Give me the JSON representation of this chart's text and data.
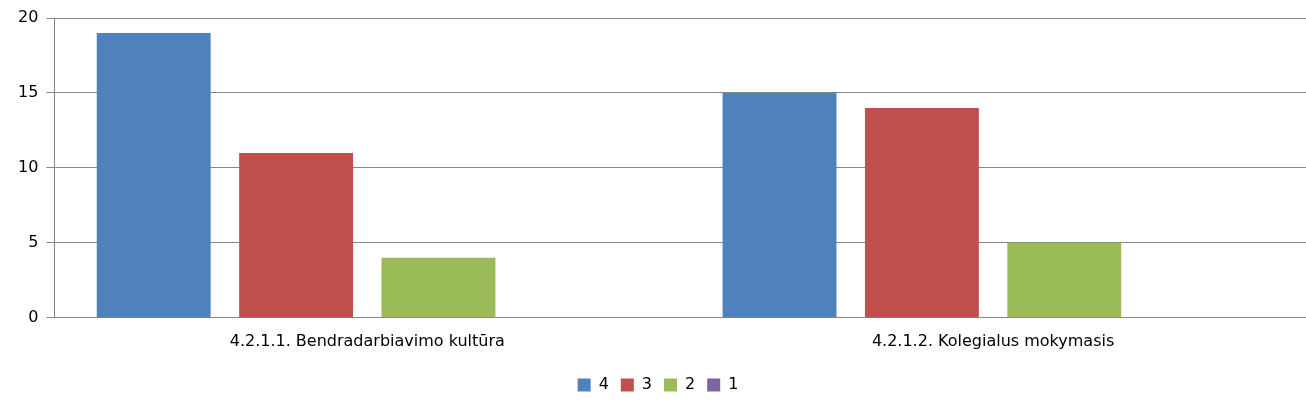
{
  "chart_data": {
    "type": "bar",
    "categories": [
      "4.2.1.1. Bendradarbiavimo kultūra",
      "4.2.1.2. Kolegialus mokymasis"
    ],
    "series": [
      {
        "name": "4",
        "color": "#4f81bd",
        "values": [
          19,
          15
        ]
      },
      {
        "name": "3",
        "color": "#c0504d",
        "values": [
          11,
          14
        ]
      },
      {
        "name": "2",
        "color": "#9bbb59",
        "values": [
          4,
          5
        ]
      },
      {
        "name": "1",
        "color": "#8064a2",
        "values": [
          0,
          0
        ]
      }
    ],
    "ylim": [
      0,
      20
    ],
    "yticks": [
      0,
      5,
      10,
      15,
      20
    ],
    "grid": "y",
    "legend": "bottom"
  }
}
